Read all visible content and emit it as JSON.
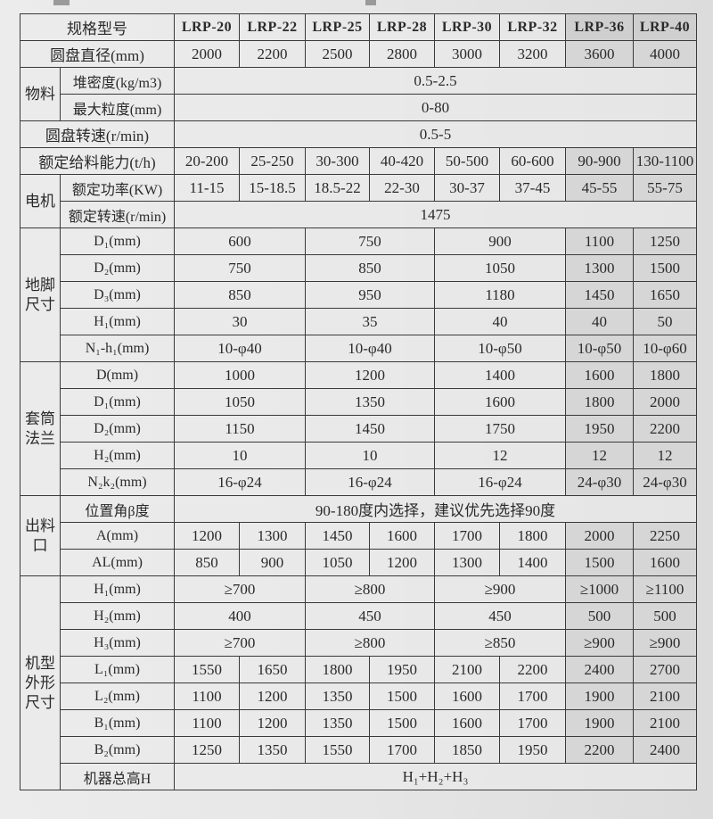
{
  "header": {
    "label": "规格型号",
    "models": [
      "LRP-20",
      "LRP-22",
      "LRP-25",
      "LRP-28",
      "LRP-30",
      "LRP-32",
      "LRP-36",
      "LRP-40"
    ]
  },
  "sections": [
    {
      "label": "圆盘直径(mm)",
      "cells": [
        "2000",
        "2200",
        "2500",
        "2800",
        "3000",
        "3200",
        "3600",
        "4000"
      ]
    },
    {
      "group": "物料",
      "rows": [
        {
          "label": "堆密度(kg/m3)",
          "cells": [
            "0.5-2.5"
          ]
        },
        {
          "label": "最大粒度(mm)",
          "cells": [
            "0-80"
          ]
        }
      ]
    },
    {
      "label": "圆盘转速(r/min)",
      "cells": [
        "0.5-5"
      ]
    },
    {
      "label": "额定给料能力(t/h)",
      "cells": [
        "20-200",
        "25-250",
        "30-300",
        "40-420",
        "50-500",
        "60-600",
        "90-900",
        "130-1100"
      ]
    },
    {
      "group": "电机",
      "rows": [
        {
          "label": "额定功率(KW)",
          "cells": [
            "11-15",
            "15-18.5",
            "18.5-22",
            "22-30",
            "30-37",
            "37-45",
            "45-55",
            "55-75"
          ]
        },
        {
          "label": "额定转速(r/min)",
          "cells": [
            "1475"
          ]
        }
      ]
    },
    {
      "group": "地脚尺寸",
      "rows": [
        {
          "label": "D₁(mm)",
          "cells": [
            "600",
            "750",
            "900",
            "1100",
            "1250"
          ]
        },
        {
          "label": "D₂(mm)",
          "cells": [
            "750",
            "850",
            "1050",
            "1300",
            "1500"
          ]
        },
        {
          "label": "D₃(mm)",
          "cells": [
            "850",
            "950",
            "1180",
            "1450",
            "1650"
          ]
        },
        {
          "label": "H₁(mm)",
          "cells": [
            "30",
            "35",
            "40",
            "40",
            "50"
          ]
        },
        {
          "label": "N₁-h₁(mm)",
          "cells": [
            "10-φ40",
            "10-φ40",
            "10-φ50",
            "10-φ50",
            "10-φ60"
          ]
        }
      ]
    },
    {
      "group": "套筒法兰",
      "rows": [
        {
          "label": "D(mm)",
          "cells": [
            "1000",
            "1200",
            "1400",
            "1600",
            "1800"
          ]
        },
        {
          "label": "D₁(mm)",
          "cells": [
            "1050",
            "1350",
            "1600",
            "1800",
            "2000"
          ]
        },
        {
          "label": "D₂(mm)",
          "cells": [
            "1150",
            "1450",
            "1750",
            "1950",
            "2200"
          ]
        },
        {
          "label": "H₂(mm)",
          "cells": [
            "10",
            "10",
            "12",
            "12",
            "12"
          ]
        },
        {
          "label": "N₂k₂(mm)",
          "cells": [
            "16-φ24",
            "16-φ24",
            "16-φ24",
            "24-φ30",
            "24-φ30"
          ]
        }
      ]
    },
    {
      "group": "出料口",
      "rows": [
        {
          "label": "位置角β度",
          "cells": [
            "90-180度内选择，建议优先选择90度"
          ]
        },
        {
          "label": "A(mm)",
          "cells": [
            "1200",
            "1300",
            "1450",
            "1600",
            "1700",
            "1800",
            "2000",
            "2250"
          ]
        },
        {
          "label": "AL(mm)",
          "cells": [
            "850",
            "900",
            "1050",
            "1200",
            "1300",
            "1400",
            "1500",
            "1600"
          ]
        }
      ]
    },
    {
      "group": "机型外形尺寸",
      "rows": [
        {
          "label": "H₁(mm)",
          "cells": [
            "≥700",
            "≥800",
            "≥900",
            "≥1000",
            "≥1100"
          ]
        },
        {
          "label": "H₂(mm)",
          "cells": [
            "400",
            "450",
            "450",
            "500",
            "500"
          ]
        },
        {
          "label": "H₃(mm)",
          "cells": [
            "≥700",
            "≥800",
            "≥850",
            "≥900",
            "≥900"
          ]
        },
        {
          "label": "L₁(mm)",
          "cells": [
            "1550",
            "1650",
            "1800",
            "1950",
            "2100",
            "2200",
            "2400",
            "2700"
          ]
        },
        {
          "label": "L₂(mm)",
          "cells": [
            "1100",
            "1200",
            "1350",
            "1500",
            "1600",
            "1700",
            "1900",
            "2100"
          ]
        },
        {
          "label": "B₁(mm)",
          "cells": [
            "1100",
            "1200",
            "1350",
            "1500",
            "1600",
            "1700",
            "1900",
            "2100"
          ]
        },
        {
          "label": "B₂(mm)",
          "cells": [
            "1250",
            "1350",
            "1550",
            "1700",
            "1850",
            "1950",
            "2200",
            "2400"
          ]
        },
        {
          "label": "机器总高H",
          "cells": [
            "H₁+H₂+H₃"
          ]
        }
      ]
    }
  ]
}
